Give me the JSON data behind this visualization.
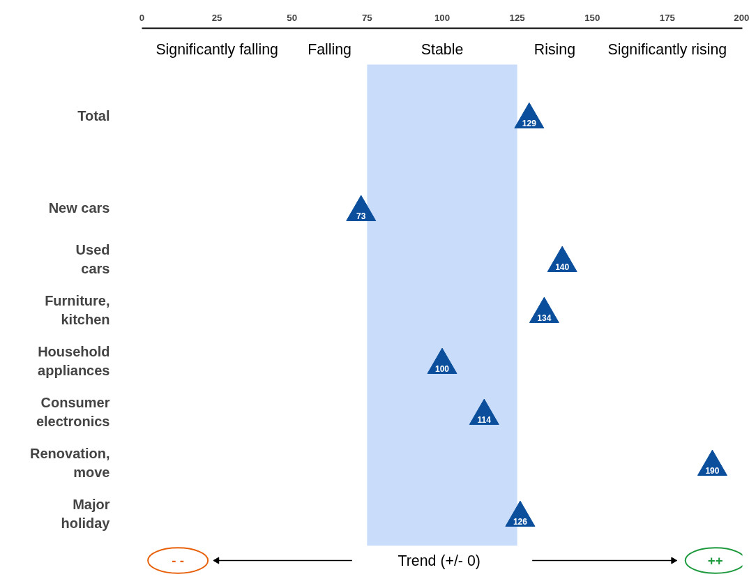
{
  "chart_data": {
    "type": "scatter",
    "orientation": "horizontal",
    "marker": "triangle",
    "data_labels": true,
    "grid": false,
    "categories": [
      "Total",
      "New cars",
      "Used\ncars",
      "Furniture,\nkitchen",
      "Household\nappliances",
      "Consumer\nelectronics",
      "Renovation,\nmove",
      "Major\nholiday"
    ],
    "series": [
      {
        "color": "#0b4f9c",
        "values": [
          129,
          73,
          140,
          134,
          100,
          114,
          190,
          126
        ]
      }
    ],
    "xlim": [
      0,
      200
    ],
    "xticks": [
      0,
      25,
      50,
      75,
      100,
      125,
      150,
      175,
      200
    ],
    "bands": [
      {
        "axis": "x",
        "from": 75,
        "to": 125,
        "label": "Stable",
        "color": "#c9dcfa"
      }
    ],
    "annotations": [
      "Significantly falling",
      "Falling",
      "Rising",
      "Significantly rising",
      "- -",
      "Trend (+/- 0)",
      "++"
    ]
  }
}
